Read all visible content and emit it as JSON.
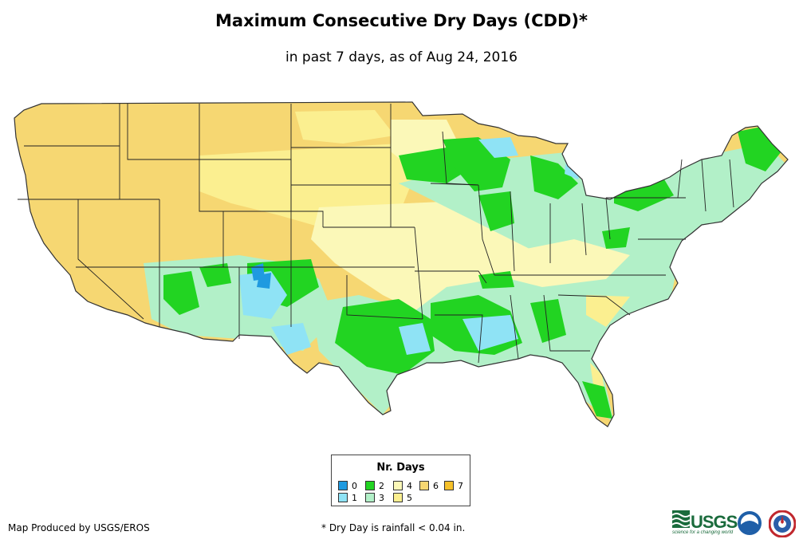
{
  "title": "Maximum Consecutive Dry Days (CDD)*",
  "subtitle": "in past 7 days, as of Aug 24, 2016",
  "legend": {
    "title": "Nr. Days",
    "items": [
      {
        "label": "0",
        "color": "#1f9ae0"
      },
      {
        "label": "1",
        "color": "#8fe3f5"
      },
      {
        "label": "2",
        "color": "#22d422"
      },
      {
        "label": "3",
        "color": "#b2f0c8"
      },
      {
        "label": "4",
        "color": "#fbf8b8"
      },
      {
        "label": "5",
        "color": "#fbef90"
      },
      {
        "label": "6",
        "color": "#f6d772"
      },
      {
        "label": "7",
        "color": "#f6c12a"
      }
    ]
  },
  "footer": {
    "credit": "Map Produced by USGS/EROS",
    "footnote": "* Dry Day is rainfall < 0.04 in.",
    "usgs_text": "USGS",
    "usgs_tagline": "science for a changing world"
  },
  "colors": {
    "state_border": "#222222",
    "land_outline": "#333333"
  }
}
